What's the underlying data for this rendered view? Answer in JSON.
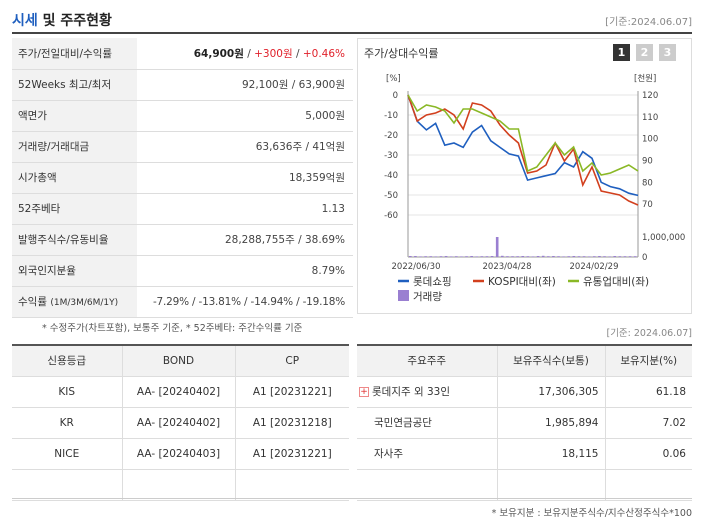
{
  "header": {
    "title_accent": "시세",
    "title_rest": " 및 주주현황",
    "date": "[기준:2024.06.07]"
  },
  "quote": [
    {
      "key": "주가/전일대비/수익률",
      "price": "64,900원",
      "change": "+300원",
      "rate": "+0.46%"
    },
    {
      "key": "52Weeks 최고/최저",
      "value": "92,100원 / 63,900원"
    },
    {
      "key": "액면가",
      "value": "5,000원"
    },
    {
      "key": "거래량/거래대금",
      "value": "63,636주 / 41억원"
    },
    {
      "key": "시가총액",
      "value": "18,359억원"
    },
    {
      "key": "52주베타",
      "value": "1.13"
    },
    {
      "key": "발행주식수/유동비율",
      "value": "28,288,755주 / 38.69%"
    },
    {
      "key": "외국인지분율",
      "value": "8.79%"
    },
    {
      "key": "수익률",
      "key_sub": "(1M/3M/6M/1Y)",
      "value": "-7.29% / -13.81% / -14.94% / -19.18%"
    }
  ],
  "chart_panel": {
    "title": "주가/상대수익률",
    "tabs": [
      "1",
      "2",
      "3"
    ],
    "legend": [
      "롯데쇼핑",
      "KOSPI대비(좌)",
      "유통업대비(좌)",
      "거래량"
    ]
  },
  "chart_data": {
    "type": "line",
    "x_ticks": [
      "2022/06/30",
      "2023/04/28",
      "2024/02/29"
    ],
    "left_unit": "[%]",
    "right_unit": "[천원]",
    "left_ticks": [
      "0",
      "-10",
      "-20",
      "-30",
      "-40",
      "-50",
      "-60"
    ],
    "right_ticks": [
      "120",
      "110",
      "100",
      "90",
      "80",
      "70"
    ],
    "volume_ticks": [
      "1,000,000",
      "0"
    ],
    "left_range": [
      -60,
      0
    ],
    "right_range": [
      65,
      120
    ],
    "series": [
      {
        "name": "롯데쇼핑",
        "color": "#1f5fbf",
        "axis": "right",
        "values": [
          120,
          108,
          104,
          107,
          97,
          98,
          96,
          103,
          106,
          99,
          96,
          93,
          92,
          81,
          82,
          83,
          84,
          89,
          87,
          94,
          91,
          80,
          78,
          77,
          75,
          74
        ]
      },
      {
        "name": "KOSPI대비(좌)",
        "color": "#d2401e",
        "axis": "left",
        "values": [
          0,
          -13,
          -10,
          -9,
          -7,
          -10,
          -17,
          -4,
          -5,
          -8,
          -15,
          -20,
          -24,
          -39,
          -38,
          -35,
          -24,
          -33,
          -27,
          -45,
          -36,
          -48,
          -49,
          -50,
          -53,
          -55
        ]
      },
      {
        "name": "유통업대비(좌)",
        "color": "#8ab826",
        "axis": "left",
        "values": [
          0,
          -8,
          -5,
          -6,
          -8,
          -14,
          -7,
          -7,
          -9,
          -11,
          -13,
          -17,
          -17,
          -38,
          -36,
          -30,
          -24,
          -30,
          -26,
          -38,
          -34,
          -40,
          -39,
          -37,
          -35,
          -38
        ]
      }
    ],
    "volume": {
      "name": "거래량",
      "color": "#9a7fd1",
      "values": [
        0.05,
        0.05,
        0.03,
        0.04,
        0.04,
        0.03,
        0.04,
        0.05,
        0.03,
        0.04,
        0.03,
        0.04,
        0.05,
        0.03,
        0.04,
        0.04,
        0.05,
        1.0,
        0.06,
        0.04,
        0.04,
        0.04,
        0.05,
        0.04,
        0.03,
        0.05,
        0.06,
        0.04,
        0.05,
        0.04,
        0.03,
        0.04,
        0.05,
        0.04,
        0.04,
        0.03,
        0.04,
        0.05,
        0.04,
        0.03,
        0.05,
        0.04,
        0.04,
        0.04,
        0.04
      ]
    }
  },
  "notes": {
    "left": "* 수정주가(차트포함), 보통주 기준, * 52주베타: 주간수익률 기준",
    "right": "[기준: 2024.06.07]",
    "bottom": "* 보유지분 : 보유지분주식수/지수산정주식수*100"
  },
  "credit": {
    "headers": [
      "신용등급",
      "BOND",
      "CP"
    ],
    "rows": [
      {
        "agency": "KIS",
        "bond": "AA-  [20240402]",
        "cp": "A1  [20231221]"
      },
      {
        "agency": "KR",
        "bond": "AA-  [20240402]",
        "cp": "A1  [20231218]"
      },
      {
        "agency": "NICE",
        "bond": "AA-  [20240403]",
        "cp": "A1  [20231221]"
      },
      {
        "agency": "",
        "bond": "",
        "cp": ""
      }
    ]
  },
  "holders": {
    "headers": [
      "주요주주",
      "보유주식수(보통)",
      "보유지분(%)"
    ],
    "rows": [
      {
        "name": "롯데지주 외 33인",
        "shares": "17,306,305",
        "pct": "61.18",
        "expand": "+"
      },
      {
        "name": "국민연금공단",
        "shares": "1,985,894",
        "pct": "7.02",
        "expand": ""
      },
      {
        "name": "자사주",
        "shares": "18,115",
        "pct": "0.06",
        "expand": ""
      },
      {
        "name": "",
        "shares": "",
        "pct": "",
        "expand": ""
      }
    ]
  }
}
